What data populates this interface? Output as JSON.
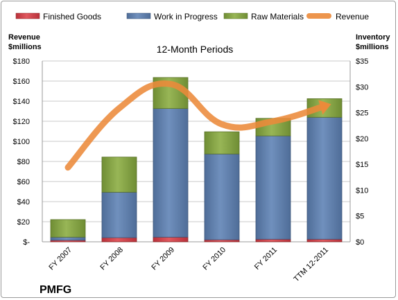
{
  "company": "PMFG",
  "subtitle": "12-Month Periods",
  "left_axis_label_line1": "Revenue",
  "left_axis_label_line2": "$millions",
  "right_axis_label_line1": "Inventory",
  "right_axis_label_line2": "$millions",
  "legend": {
    "finished_goods": "Finished Goods",
    "work_in_progress": "Work in Progress",
    "raw_materials": "Raw Materials",
    "revenue": "Revenue"
  },
  "colors": {
    "finished_goods": "#d9474c",
    "work_in_progress": "#6a88b6",
    "raw_materials": "#8fad4c",
    "revenue": "#ec8a3a",
    "grid": "#c8c8c8"
  },
  "chart_data": {
    "type": "bar",
    "stacked": true,
    "categories": [
      "FY 2007",
      "FY 2008",
      "FY 2009",
      "FY 2010",
      "FY 2011",
      "TTM 12-2011"
    ],
    "left_axis": {
      "ylim": [
        0,
        180
      ],
      "ticks": [
        0,
        20,
        40,
        60,
        80,
        100,
        120,
        140,
        160,
        180
      ],
      "tick_labels": [
        "$-",
        "$20",
        "$40",
        "$60",
        "$80",
        "$100",
        "$120",
        "$140",
        "$160",
        "$180"
      ]
    },
    "right_axis": {
      "ylim": [
        0,
        35
      ],
      "ticks": [
        0,
        5,
        10,
        15,
        20,
        25,
        30,
        35
      ],
      "tick_labels": [
        "$0",
        "$5",
        "$10",
        "$15",
        "$20",
        "$25",
        "$30",
        "$35"
      ]
    },
    "series": [
      {
        "name": "Finished Goods",
        "axis": "right",
        "values": [
          0.3,
          0.8,
          0.9,
          0.4,
          0.5,
          0.5
        ]
      },
      {
        "name": "Work in Progress",
        "axis": "right",
        "values": [
          0.6,
          8.8,
          24.9,
          16.6,
          20.0,
          23.6
        ]
      },
      {
        "name": "Raw Materials",
        "axis": "right",
        "values": [
          3.4,
          6.8,
          6.0,
          4.3,
          3.4,
          3.6
        ]
      },
      {
        "name": "Revenue",
        "type": "line",
        "axis": "left",
        "values": [
          74,
          133,
          157,
          117,
          120,
          135
        ]
      }
    ],
    "grid": true,
    "legend_position": "top"
  }
}
